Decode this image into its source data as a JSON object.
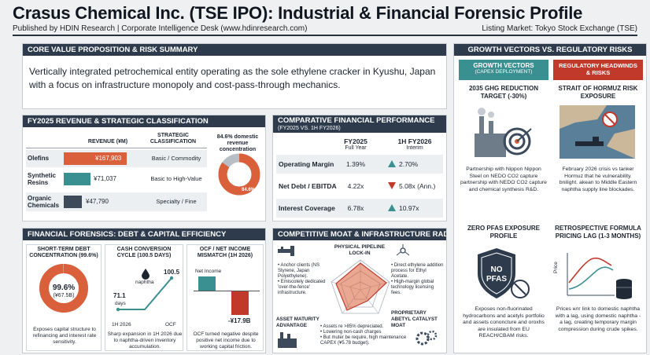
{
  "header": {
    "title": "Crasus Chemical Inc. (TSE IPO): Industrial & Financial Forensic Profile",
    "publisher": "Published by HDIN Research | Corporate Intelligence Desk (www.hdinresearch.com)",
    "listing": "Listing Market: Tokyo Stock Exchange (TSE)"
  },
  "core": {
    "heading": "CORE VALUE PROPOSITION & RISK SUMMARY",
    "text": "Vertically integrated petrochemical entity operating as the sole ethylene cracker in Kyushu, Japan with a focus on infrastructure monopoly and cost-pass-through mechanics."
  },
  "revenue": {
    "heading": "FY2025 REVENUE & STRATEGIC CLASSIFICATION",
    "col_revenue": "REVENUE (¥M)",
    "col_class": "STRATEGIC CLASSIFICATION",
    "rows": [
      {
        "name": "Olefins",
        "value": "¥167,903",
        "class": "Basic / Commodity",
        "amount": 167903
      },
      {
        "name": "Synthetic Resins",
        "value": "¥71,037",
        "class": "Basic to High-Value",
        "amount": 71037
      },
      {
        "name": "Organic Chemicals",
        "value": "¥47,790",
        "class": "Specialty / Fine",
        "amount": 47790
      }
    ],
    "donut_label": "84.6% domestic revenue concentration",
    "donut_value": "84.6%",
    "donut_fraction": 0.846
  },
  "performance": {
    "heading": "COMPARATIVE FINANCIAL PERFORMANCE",
    "subheading": "(FY2025 VS. 1H FY2026)",
    "col1": "FY2025",
    "col1_sub": "Full Year",
    "col2": "1H FY2026",
    "col2_sub": "Interim",
    "rows": [
      {
        "metric": "Operating Margin",
        "v1": "1.39%",
        "v2": "2.70%",
        "trend": "up"
      },
      {
        "metric": "Net Debt / EBITDA",
        "v1": "4.22x",
        "v2": "5.08x (Ann.)",
        "trend": "down"
      },
      {
        "metric": "Interest Coverage",
        "v1": "6.78x",
        "v2": "10.97x",
        "trend": "up"
      }
    ]
  },
  "forensics": {
    "heading": "FINANCIAL FORENSICS: DEBT & CAPITAL EFFICIENCY",
    "debt_title": "SHORT-TERM DEBT CONCENTRATION (99.6%)",
    "debt_value": "99.6%",
    "debt_amount": "(¥67.5B)",
    "debt_fraction": 0.996,
    "debt_note": "Exposes capital structure to refinancing and interest rate sensitivity.",
    "ccc_title": "CASH CONVERSION CYCLE (100.5 DAYS)",
    "ccc_start": "71.1",
    "ccc_days": "days",
    "ccc_end": "100.5",
    "ccc_x1": "1H 2026",
    "ccc_x2": "OCF",
    "ccc_icon_label": "naphtha",
    "ccc_note": "Sharp expansion in 1H 2026 due to naphtha-driven inventory accumulation.",
    "ocf_title": "OCF / NET INCOME MISMATCH (1H 2026)",
    "ocf_label": "Net Income",
    "ocf_value": "-¥17.9B",
    "ocf_note": "OCF turned negative despite positive net income due to working capital friction."
  },
  "moat": {
    "heading": "COMPETITIVE MOAT & INFRASTRUCTURE RADAR",
    "axis_top": "PHYSICAL PIPELINE LOCK-IN",
    "axis_right": "PROPRIETARY ABETYL CATALYST MOAT",
    "axis_left": "ASSET MATURITY ADVANTAGE",
    "left_bullets": [
      "Anchor clients (NS Styrene, Japan Polyethylene).",
      "Emiscotely dedicated 'over-the-fence' infrastructure."
    ],
    "right_bullets": [
      "Direct ethylene addition process for Ethyl Acetate.",
      "High-margin global technology licensing fees."
    ],
    "bottom_bullets": [
      "Assets re >85% depreciated.",
      "Lowering non-cash charges",
      "But muter be require, high maintenance CAPEX (¥5.78 budget)."
    ]
  },
  "vectors": {
    "heading": "GROWTH VECTORS VS. REGULATORY RISKS",
    "growth_title": "GROWTH VECTORS",
    "growth_sub": "(CAPEX DEPLOYMENT)",
    "risk_title": "REGULATORY HEADWINDS & RISKS",
    "g1_title": "2035 GHG REDUCTION TARGET (-30%)",
    "g1_text": "Partnership with Nippon Nippon Steel on NEDO CO2 capture partnership with NEDO CO2 capture and chemical synthesis R&D.",
    "r1_title": "STRAIT OF HORMUZ RISK EXPOSURE",
    "r1_text": "February 2026 crisis vs tanker Hormuz that he vulnerability. bnilight. akean to Middle Eastern naphtha supply line blockades.",
    "g2_title": "ZERO PFAS EXPOSURE PROFILE",
    "g2_badge1": "NO",
    "g2_badge2": "PFAS",
    "g2_text": "Exposes non-fluorinated hydrocarbons and acetyls portfolio and assets cononcture and oroxhs are insulated from EU REACH/CBAM risks.",
    "r2_title": "RETROSPECTIVE FORMULA PRICING LAG (1-3 MONTHS)",
    "r2_axis": "Price",
    "r2_text": "Prices нлг link to domestic naphtha with a lag, using domestic naphtha - a lag, creating temporary margin compression during crude spikes."
  },
  "colors": {
    "navy": "#2d3b4d",
    "orange": "#d9603a",
    "teal": "#3a8f91",
    "red": "#c0392b",
    "slate": "#3c4a5c"
  }
}
